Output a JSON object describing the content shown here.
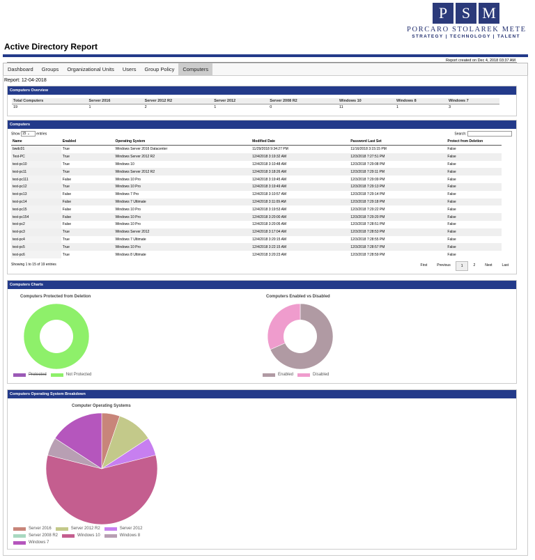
{
  "logo": {
    "letters": [
      "P",
      "S",
      "M"
    ],
    "company": "PORCARO STOLAREK METE",
    "tagline": "STRATEGY | TECHNOLOGY | TALENT"
  },
  "title": "Active Directory Report",
  "report_created": "Report created on Dec 4, 2018 03:37 AM",
  "tabs": [
    "Dashboard",
    "Groups",
    "Organizational Units",
    "Users",
    "Group Policy",
    "Computers"
  ],
  "active_tab": "Computers",
  "report_label": "Report: 12-04-2018",
  "overview": {
    "heading": "Computers Overview",
    "headers": [
      "Total Computers",
      "Server 2016",
      "Server 2012 R2",
      "Server 2012",
      "Server 2008 R2",
      "Windows 10",
      "Windows 8",
      "Windows 7"
    ],
    "values": [
      "19",
      "1",
      "2",
      "1",
      "0",
      "11",
      "1",
      "3"
    ]
  },
  "computers": {
    "heading": "Computers",
    "show_label": "Show",
    "show_value": "15",
    "entries_label": "entries",
    "search_label": "Search:",
    "headers": [
      "Name",
      "Enabled",
      "Operating System",
      "Modified Date",
      "Password Last Set",
      "Protect from Deletion"
    ],
    "rows": [
      [
        "bwdc01",
        "True",
        "Windows Server 2016 Datacenter",
        "11/29/2018 9:34:27 PM",
        "11/16/2018 3:15:15 PM",
        "False"
      ],
      [
        "Test-PC",
        "True",
        "Windows Server 2012 R2",
        "12/4/2018 3:19:32 AM",
        "12/3/2018 7:27:51 PM",
        "False"
      ],
      [
        "test-pc10",
        "True",
        "Windows 10",
        "12/4/2018 3:10:48 AM",
        "12/3/2018 7:29:08 PM",
        "False"
      ],
      [
        "test-pc11",
        "True",
        "Windows Server 2012 R2",
        "12/4/2018 3:18:26 AM",
        "12/3/2018 7:29:11 PM",
        "False"
      ],
      [
        "test-pc111",
        "False",
        "Windows 10 Pro",
        "12/4/2018 3:19:45 AM",
        "12/3/2018 7:29:09 PM",
        "False"
      ],
      [
        "test-pc12",
        "True",
        "Windows 10 Pro",
        "12/4/2018 3:19:49 AM",
        "12/3/2018 7:29:13 PM",
        "False"
      ],
      [
        "test-pc13",
        "False",
        "Windows 7 Pro",
        "12/4/2018 3:10:57 AM",
        "12/3/2018 7:29:14 PM",
        "False"
      ],
      [
        "test-pc14",
        "False",
        "Windows 7 Ultimate",
        "12/4/2018 3:11:09 AM",
        "12/3/2018 7:29:18 PM",
        "False"
      ],
      [
        "test-pc15",
        "False",
        "Windows 10 Pro",
        "12/4/2018 3:19:53 AM",
        "12/3/2018 7:29:22 PM",
        "False"
      ],
      [
        "test-pc154",
        "False",
        "Windows 10 Pro",
        "12/4/2018 3:20:00 AM",
        "12/3/2018 7:29:20 PM",
        "False"
      ],
      [
        "test-pc2",
        "False",
        "Windows 10 Pro",
        "12/4/2018 3:20:05 AM",
        "12/3/2018 7:28:51 PM",
        "False"
      ],
      [
        "test-pc3",
        "True",
        "Windows Server 2012",
        "12/4/2018 3:17:04 AM",
        "12/3/2018 7:28:53 PM",
        "False"
      ],
      [
        "test-pc4",
        "True",
        "Windows 7 Ultimate",
        "12/4/2018 3:20:15 AM",
        "12/3/2018 7:28:55 PM",
        "False"
      ],
      [
        "test-pc5",
        "True",
        "Windows 10 Pro",
        "12/4/2018 3:22:15 AM",
        "12/3/2018 7:28:57 PM",
        "False"
      ],
      [
        "test-pc6",
        "True",
        "Windows 8 Ultimate",
        "12/4/2018 3:20:23 AM",
        "12/3/2018 7:28:59 PM",
        "False"
      ]
    ],
    "showing": "Showing 1 to 15 of 19 entries",
    "pager": [
      "First",
      "Previous",
      "1",
      "2",
      "Next",
      "Last"
    ],
    "current_page": "1"
  },
  "charts_heading": "Computers Charts",
  "os_heading": "Computers Operating System Breakdown",
  "chart_data": [
    {
      "type": "pie",
      "title": "Computers Protected from Deletion",
      "donut": true,
      "categories": [
        "Protected",
        "Not Protected"
      ],
      "values": [
        0,
        19
      ],
      "colors": [
        "#9b59b6",
        "#8ef06a"
      ],
      "hidden": [
        "Protected"
      ]
    },
    {
      "type": "pie",
      "title": "Computers Enabled vs Disabled",
      "donut": true,
      "categories": [
        "Enabled",
        "Disabled"
      ],
      "values": [
        13,
        6
      ],
      "colors": [
        "#b09aa3",
        "#ef9ccd"
      ]
    },
    {
      "type": "pie",
      "title": "Computer Operating Systems",
      "donut": false,
      "categories": [
        "Server 2016",
        "Server 2012 R2",
        "Server 2012",
        "Server 2008 R2",
        "Windows 10",
        "Windows 8",
        "Windows 7"
      ],
      "values": [
        1,
        2,
        1,
        0,
        11,
        1,
        3
      ],
      "colors": [
        "#c8857a",
        "#c3c98a",
        "#c77ff0",
        "#a8d8c0",
        "#c45e8f",
        "#b89fb3",
        "#b556bd"
      ]
    }
  ]
}
